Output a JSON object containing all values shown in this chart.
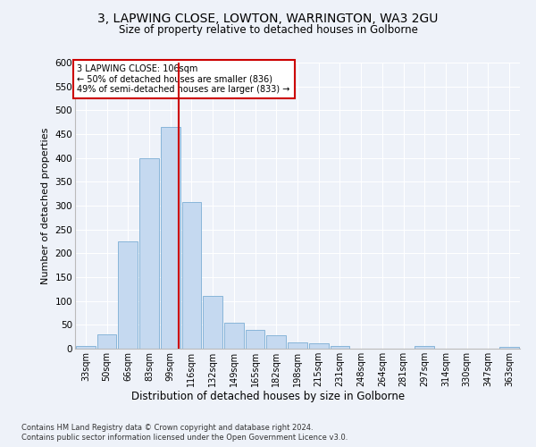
{
  "title_line1": "3, LAPWING CLOSE, LOWTON, WARRINGTON, WA3 2GU",
  "title_line2": "Size of property relative to detached houses in Golborne",
  "xlabel": "Distribution of detached houses by size in Golborne",
  "ylabel": "Number of detached properties",
  "categories": [
    "33sqm",
    "50sqm",
    "66sqm",
    "83sqm",
    "99sqm",
    "116sqm",
    "132sqm",
    "149sqm",
    "165sqm",
    "182sqm",
    "198sqm",
    "215sqm",
    "231sqm",
    "248sqm",
    "264sqm",
    "281sqm",
    "297sqm",
    "314sqm",
    "330sqm",
    "347sqm",
    "363sqm"
  ],
  "values": [
    5,
    30,
    225,
    400,
    465,
    307,
    110,
    54,
    39,
    29,
    13,
    11,
    6,
    0,
    0,
    0,
    5,
    0,
    0,
    0,
    4
  ],
  "bar_color": "#c5d9f0",
  "bar_edge_color": "#7badd4",
  "vline_color": "#cc0000",
  "annotation_title": "3 LAPWING CLOSE: 106sqm",
  "annotation_line2": "← 50% of detached houses are smaller (836)",
  "annotation_line3": "49% of semi-detached houses are larger (833) →",
  "annotation_box_color": "#ffffff",
  "annotation_box_edge": "#cc0000",
  "ylim": [
    0,
    600
  ],
  "yticks": [
    0,
    50,
    100,
    150,
    200,
    250,
    300,
    350,
    400,
    450,
    500,
    550,
    600
  ],
  "footer_line1": "Contains HM Land Registry data © Crown copyright and database right 2024.",
  "footer_line2": "Contains public sector information licensed under the Open Government Licence v3.0.",
  "bg_color": "#eef2f9",
  "plot_bg_color": "#eef2f9"
}
